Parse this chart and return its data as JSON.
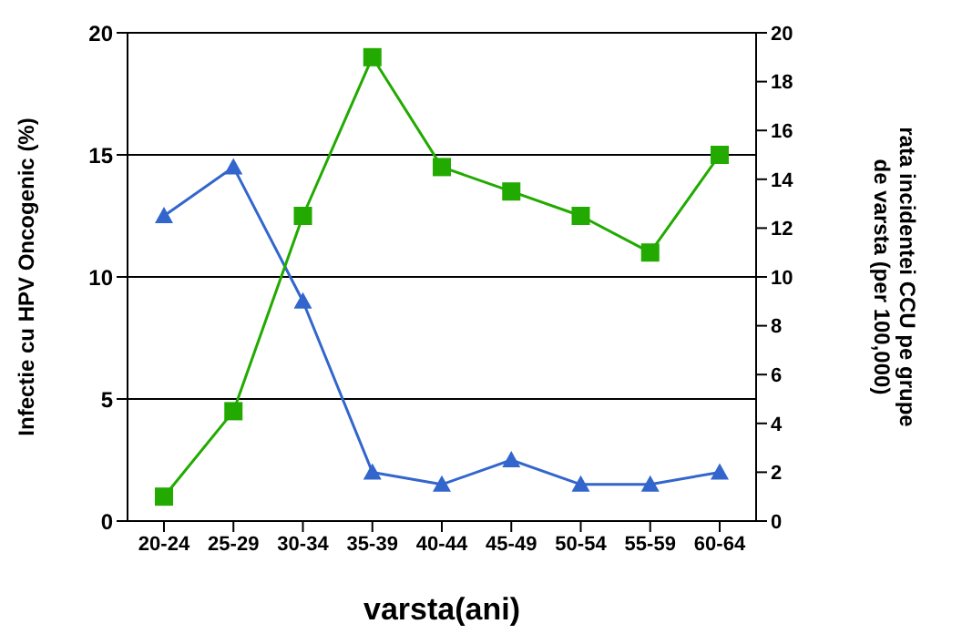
{
  "chart_data": {
    "type": "line",
    "xlabel": "varsta(ani)",
    "ylabel": "Infectie cu HPV Oncogenic (%)",
    "y2label": "rata incidentei CCU pe grupe de varsta  (per 100,000)",
    "categories": [
      "20-24",
      "25-29",
      "30-34",
      "35-39",
      "40-44",
      "45-49",
      "50-54",
      "55-59",
      "60-64"
    ],
    "series": [
      {
        "color": "#3366cc",
        "marker": "triangle",
        "values": [
          12.5,
          14.5,
          9,
          2,
          1.5,
          2.5,
          1.5,
          1.5,
          2
        ]
      },
      {
        "color": "#22aa00",
        "marker": "square",
        "values": [
          1,
          4.5,
          12.5,
          19,
          14.5,
          13.5,
          12.5,
          11,
          15
        ]
      }
    ],
    "ylim": [
      0,
      20
    ],
    "yticks": [
      0,
      5,
      10,
      15,
      20
    ],
    "y2lim": [
      0,
      20
    ],
    "y2ticks": [
      0,
      2,
      4,
      6,
      8,
      10,
      12,
      14,
      16,
      18,
      20
    ],
    "grid": "y",
    "legend": false
  }
}
